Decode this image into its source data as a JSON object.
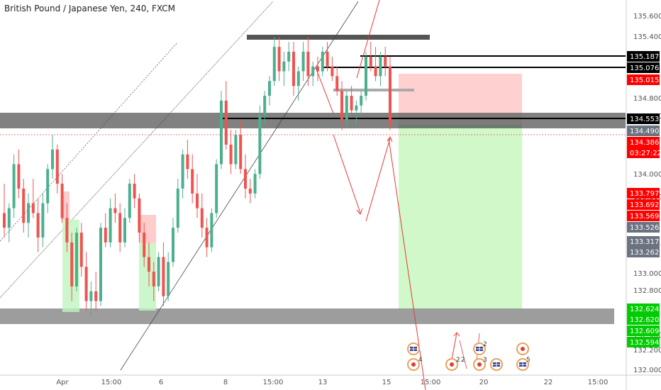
{
  "header": {
    "title": "British Pound / Japanese Yen, 240, FXCM"
  },
  "colors": {
    "bull": "#4caf8f",
    "bear": "#ef5350",
    "zone_gray": "#8c8c8c",
    "stop_zone": "#ffc8c8",
    "target_zone": "#c8f7c0",
    "arrow": "#e53935",
    "badge_black": "#000000",
    "badge_red": "#ff0000",
    "badge_green": "#00cc00",
    "badge_gray": "#6b7280"
  },
  "chart_data": {
    "type": "candlestick",
    "y_ticks": [
      "135.600",
      "135.400",
      "134.800",
      "134.600",
      "134.000",
      "133.800",
      "133.000",
      "132.800",
      "132.400",
      "132.200",
      "132.000"
    ],
    "x_ticks": [
      "Apr",
      "15:00",
      "6",
      "8",
      "15:00",
      "13",
      "15",
      "15:00",
      "20",
      "22",
      "15:00"
    ],
    "ylim": [
      131.95,
      135.75
    ],
    "price_badges": [
      {
        "label": "135.187",
        "value": 135.187,
        "kind": "black"
      },
      {
        "label": "135.076",
        "value": 135.076,
        "kind": "black"
      },
      {
        "label": "135.015",
        "value": 135.015,
        "kind": "red"
      },
      {
        "label": "134.553",
        "value": 134.553,
        "kind": "black"
      },
      {
        "label": "134.490",
        "value": 134.49,
        "kind": "gray"
      },
      {
        "label": "134.386",
        "value": 134.386,
        "kind": "red"
      },
      {
        "label": "03:27:22",
        "value": 134.27,
        "kind": "red"
      },
      {
        "label": "133.797",
        "value": 133.797,
        "kind": "red"
      },
      {
        "label": "133.692",
        "value": 133.692,
        "kind": "red"
      },
      {
        "label": "133.569",
        "value": 133.569,
        "kind": "red"
      },
      {
        "label": "133.526",
        "value": 133.526,
        "kind": "gray"
      },
      {
        "label": "133.317",
        "value": 133.317,
        "kind": "gray"
      },
      {
        "label": "133.262",
        "value": 133.262,
        "kind": "gray"
      },
      {
        "label": "132.624",
        "value": 132.624,
        "kind": "green"
      },
      {
        "label": "132.620",
        "value": 132.62,
        "kind": "green"
      },
      {
        "label": "132.609",
        "value": 132.609,
        "kind": "green"
      },
      {
        "label": "132.594",
        "value": 132.594,
        "kind": "green"
      }
    ],
    "candles": [
      [
        133.6,
        133.9,
        133.35,
        133.45
      ],
      [
        133.45,
        133.7,
        133.3,
        133.65
      ],
      [
        133.65,
        134.2,
        133.55,
        134.1
      ],
      [
        134.1,
        134.25,
        133.75,
        133.85
      ],
      [
        133.85,
        133.95,
        133.4,
        133.5
      ],
      [
        133.5,
        133.8,
        133.35,
        133.7
      ],
      [
        133.7,
        133.95,
        133.55,
        133.6
      ],
      [
        133.6,
        133.75,
        133.2,
        133.35
      ],
      [
        133.35,
        133.8,
        133.25,
        133.7
      ],
      [
        133.7,
        134.1,
        133.6,
        134.05
      ],
      [
        134.05,
        134.4,
        133.95,
        134.25
      ],
      [
        134.25,
        134.3,
        133.8,
        133.9
      ],
      [
        133.9,
        134.0,
        133.5,
        133.55
      ],
      [
        133.55,
        133.7,
        133.2,
        133.3
      ],
      [
        133.3,
        133.4,
        132.7,
        132.85
      ],
      [
        132.85,
        133.45,
        132.8,
        133.4
      ],
      [
        133.4,
        133.5,
        132.95,
        133.05
      ],
      [
        133.05,
        133.2,
        132.6,
        132.7
      ],
      [
        132.7,
        132.9,
        132.55,
        132.8
      ],
      [
        132.8,
        133.0,
        132.6,
        132.7
      ],
      [
        132.7,
        133.5,
        132.65,
        133.45
      ],
      [
        133.45,
        133.6,
        133.25,
        133.3
      ],
      [
        133.3,
        133.75,
        133.25,
        133.65
      ],
      [
        133.65,
        133.8,
        133.5,
        133.6
      ],
      [
        133.6,
        133.7,
        133.2,
        133.3
      ],
      [
        133.3,
        133.65,
        133.25,
        133.55
      ],
      [
        133.55,
        133.95,
        133.5,
        133.9
      ],
      [
        133.9,
        134.0,
        133.65,
        133.75
      ],
      [
        133.75,
        133.8,
        133.3,
        133.4
      ],
      [
        133.4,
        133.5,
        133.05,
        133.15
      ],
      [
        133.15,
        133.3,
        132.85,
        133.0
      ],
      [
        133.0,
        133.1,
        132.7,
        132.85
      ],
      [
        132.85,
        133.2,
        132.8,
        133.15
      ],
      [
        133.15,
        133.3,
        132.65,
        132.75
      ],
      [
        132.75,
        133.2,
        132.7,
        133.1
      ],
      [
        133.1,
        133.55,
        133.05,
        133.45
      ],
      [
        133.45,
        133.95,
        133.4,
        133.85
      ],
      [
        133.85,
        134.25,
        133.75,
        134.2
      ],
      [
        134.2,
        134.35,
        133.95,
        134.05
      ],
      [
        134.05,
        134.2,
        133.7,
        133.8
      ],
      [
        133.8,
        134.0,
        133.55,
        133.65
      ],
      [
        133.65,
        133.8,
        133.35,
        133.45
      ],
      [
        133.45,
        133.55,
        133.15,
        133.25
      ],
      [
        133.25,
        133.65,
        133.2,
        133.6
      ],
      [
        133.6,
        134.15,
        133.55,
        134.1
      ],
      [
        134.1,
        134.85,
        134.05,
        134.75
      ],
      [
        134.75,
        134.95,
        134.25,
        134.3
      ],
      [
        134.3,
        134.45,
        134.0,
        134.1
      ],
      [
        134.1,
        134.45,
        134.05,
        134.4
      ],
      [
        134.4,
        134.55,
        134.0,
        134.05
      ],
      [
        134.05,
        134.2,
        133.75,
        133.85
      ],
      [
        133.85,
        133.95,
        133.7,
        133.8
      ],
      [
        133.8,
        134.05,
        133.75,
        134.0
      ],
      [
        134.0,
        134.7,
        133.95,
        134.6
      ],
      [
        134.6,
        134.85,
        134.5,
        134.8
      ],
      [
        134.8,
        135.0,
        134.7,
        134.95
      ],
      [
        134.95,
        135.4,
        134.9,
        135.3
      ],
      [
        135.3,
        135.4,
        134.95,
        135.05
      ],
      [
        135.05,
        135.25,
        134.9,
        135.15
      ],
      [
        135.15,
        135.35,
        135.05,
        135.25
      ],
      [
        135.25,
        135.35,
        134.8,
        134.9
      ],
      [
        134.9,
        135.1,
        134.75,
        135.05
      ],
      [
        135.05,
        135.35,
        134.95,
        135.25
      ],
      [
        135.25,
        135.4,
        134.9,
        135.0
      ],
      [
        135.0,
        135.15,
        134.9,
        135.1
      ],
      [
        135.1,
        135.2,
        134.95,
        135.05
      ],
      [
        135.05,
        135.3,
        135.0,
        135.25
      ],
      [
        135.25,
        135.35,
        135.05,
        135.1
      ],
      [
        135.1,
        135.2,
        134.95,
        135.0
      ],
      [
        135.0,
        135.1,
        134.8,
        134.85
      ],
      [
        134.85,
        134.95,
        134.45,
        134.55
      ],
      [
        134.55,
        134.85,
        134.5,
        134.8
      ],
      [
        134.8,
        134.9,
        134.6,
        134.65
      ],
      [
        134.65,
        134.75,
        134.5,
        134.7
      ],
      [
        134.7,
        134.85,
        134.6,
        134.8
      ],
      [
        134.8,
        135.25,
        134.75,
        135.2
      ],
      [
        135.2,
        135.35,
        135.05,
        135.1
      ],
      [
        135.1,
        135.3,
        134.95,
        135.0
      ],
      [
        135.0,
        135.25,
        134.9,
        135.2
      ],
      [
        135.2,
        135.3,
        135.0,
        135.1
      ],
      [
        135.1,
        135.2,
        134.45,
        134.5
      ]
    ]
  }
}
